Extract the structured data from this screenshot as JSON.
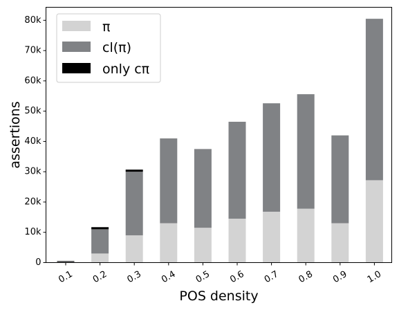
{
  "chart_data": {
    "type": "bar",
    "stacked": true,
    "categories": [
      "0.1",
      "0.2",
      "0.3",
      "0.4",
      "0.5",
      "0.6",
      "0.7",
      "0.8",
      "0.9",
      "1.0"
    ],
    "series": [
      {
        "name": "π",
        "color": "#d3d3d3",
        "values": [
          0,
          3000,
          9000,
          13000,
          11500,
          14500,
          16800,
          17800,
          13000,
          27200
        ]
      },
      {
        "name": "cl(π)",
        "color": "#808285",
        "values": [
          300,
          8000,
          21000,
          28000,
          26000,
          32000,
          35800,
          37800,
          29000,
          53300
        ]
      },
      {
        "name": "only cπ",
        "color": "#000000",
        "values": [
          200,
          700,
          700,
          0,
          0,
          0,
          0,
          0,
          0,
          0
        ]
      }
    ],
    "xlabel": "POS density",
    "ylabel": "assertions",
    "ylim": [
      0,
      84300
    ],
    "yticks": [
      0,
      10000,
      20000,
      30000,
      40000,
      50000,
      60000,
      70000,
      80000
    ],
    "ytick_labels": [
      "0",
      "10k",
      "20k",
      "30k",
      "40k",
      "50k",
      "60k",
      "70k",
      "80k"
    ],
    "grid": false,
    "legend_position": "top-left"
  }
}
